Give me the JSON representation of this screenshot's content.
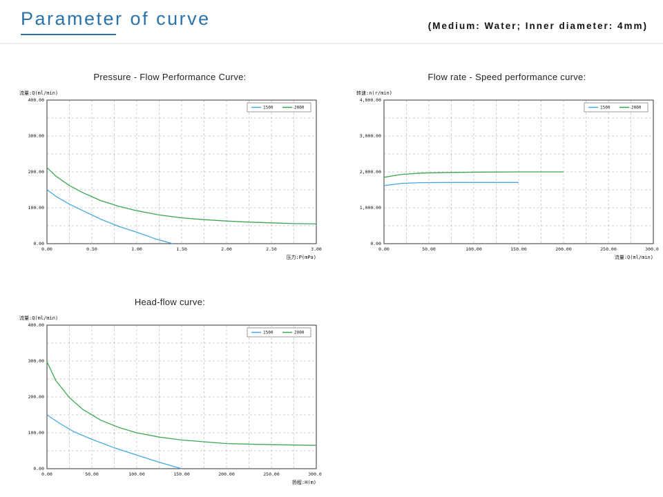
{
  "header": {
    "title": "Parameter of curve",
    "subtitle": "(Medium: Water; Inner diameter: 4mm)"
  },
  "colors": {
    "title_accent": "#2a72aa",
    "series_1500": "#45a7e0",
    "series_2000": "#3aa655",
    "grid": "#999999",
    "axis_border": "#333333"
  },
  "chart_data": [
    {
      "type": "line",
      "title": "Pressure - Flow Performance Curve:",
      "ylabel": "流量:Q(ml/min)",
      "xlabel": "压力:P(mPa)",
      "xlim": [
        0,
        3
      ],
      "ylim": [
        0,
        400
      ],
      "xticks": [
        0,
        0.5,
        1,
        1.5,
        2,
        2.5,
        3
      ],
      "xtick_labels": [
        "0.00",
        "0.50",
        "1.00",
        "1.50",
        "2.00",
        "2.50",
        "3.00"
      ],
      "yticks": [
        0,
        100,
        200,
        300,
        400
      ],
      "ytick_labels": [
        "0.00",
        "100.00",
        "200.00",
        "300.00",
        "400.00"
      ],
      "grid": "dashed",
      "legend_position": "top-right",
      "series": [
        {
          "name": "1500",
          "color": "#45a7e0",
          "x": [
            0,
            0.1,
            0.25,
            0.4,
            0.6,
            0.8,
            1.0,
            1.2,
            1.4
          ],
          "y": [
            150,
            132,
            110,
            92,
            68,
            48,
            32,
            14,
            0
          ]
        },
        {
          "name": "2000",
          "color": "#3aa655",
          "x": [
            0,
            0.1,
            0.25,
            0.4,
            0.6,
            0.8,
            1.0,
            1.25,
            1.5,
            1.75,
            2.0,
            2.25,
            2.5,
            2.75,
            3.0
          ],
          "y": [
            212,
            188,
            162,
            142,
            120,
            104,
            92,
            80,
            72,
            67,
            63,
            60,
            58,
            56,
            55
          ]
        }
      ]
    },
    {
      "type": "line",
      "title": "Flow rate - Speed performance curve:",
      "ylabel": "转速:n(r/min)",
      "xlabel": "流量:Q(ml/min)",
      "xlim": [
        0,
        300
      ],
      "ylim": [
        0,
        4000
      ],
      "xticks": [
        0,
        50,
        100,
        150,
        200,
        250,
        300
      ],
      "xtick_labels": [
        "0.00",
        "50.00",
        "100.00",
        "150.00",
        "200.00",
        "250.00",
        "300.00"
      ],
      "yticks": [
        0,
        1000,
        2000,
        3000,
        4000
      ],
      "ytick_labels": [
        "0.00",
        "1,000.00",
        "2,000.00",
        "3,000.00",
        "4,000.00"
      ],
      "grid": "dashed",
      "legend_position": "top-right",
      "series": [
        {
          "name": "1500",
          "color": "#45a7e0",
          "x": [
            0,
            20,
            40,
            75,
            110,
            150
          ],
          "y": [
            1620,
            1680,
            1700,
            1705,
            1705,
            1705
          ]
        },
        {
          "name": "2000",
          "color": "#3aa655",
          "x": [
            0,
            20,
            40,
            75,
            110,
            150,
            200
          ],
          "y": [
            1850,
            1930,
            1965,
            1985,
            1995,
            2000,
            2000
          ]
        }
      ]
    },
    {
      "type": "line",
      "title": "Head-flow curve:",
      "ylabel": "流量:Q(ml/min)",
      "xlabel": "扬程:H(m)",
      "xlim": [
        0,
        300
      ],
      "ylim": [
        0,
        400
      ],
      "xticks": [
        0,
        50,
        100,
        150,
        200,
        250,
        300
      ],
      "xtick_labels": [
        "0.00",
        "50.00",
        "100.00",
        "150.00",
        "200.00",
        "250.00",
        "300.00"
      ],
      "yticks": [
        0,
        100,
        200,
        300,
        400
      ],
      "ytick_labels": [
        "0.00",
        "100.00",
        "200.00",
        "300.00",
        "400.00"
      ],
      "grid": "dashed",
      "legend_position": "top-right",
      "series": [
        {
          "name": "1500",
          "color": "#45a7e0",
          "x": [
            0,
            15,
            30,
            50,
            75,
            100,
            125,
            150
          ],
          "y": [
            150,
            125,
            103,
            82,
            58,
            38,
            18,
            0
          ]
        },
        {
          "name": "2000",
          "color": "#3aa655",
          "x": [
            0,
            10,
            25,
            40,
            60,
            80,
            100,
            125,
            150,
            200,
            250,
            300
          ],
          "y": [
            298,
            245,
            198,
            165,
            135,
            115,
            100,
            88,
            80,
            70,
            67,
            65
          ]
        }
      ]
    }
  ]
}
